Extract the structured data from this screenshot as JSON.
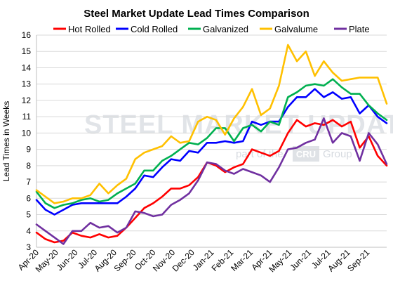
{
  "chart_data": {
    "type": "line",
    "title": "Steel Market Update Lead Times Comparison",
    "ylabel": "Lead Times in Weeks",
    "xlabel": "",
    "ylim": [
      3,
      16
    ],
    "yticks": [
      3,
      4,
      5,
      6,
      7,
      8,
      9,
      10,
      11,
      12,
      13,
      14,
      15,
      16
    ],
    "grid": true,
    "legend_position": "top",
    "watermark": {
      "brand": "STEEL MARKET UPDATE",
      "tagline_prefix": "part of the",
      "tagline_logo": "CRU",
      "tagline_suffix": "Group"
    },
    "x_tick_labels": [
      "Apr-20",
      "May-20",
      "Jun-20",
      "Jul-20",
      "Aug-20",
      "Sep-20",
      "Oct-20",
      "Nov-20",
      "Dec-20",
      "Jan-21",
      "Feb-21",
      "Mar-21",
      "Apr-21",
      "May-21",
      "Jun-21",
      "Jul-21",
      "Aug-21",
      "Sep-21"
    ],
    "series": [
      {
        "name": "Hot Rolled",
        "color": "#ff0000",
        "values": [
          3.9,
          3.5,
          3.3,
          3.4,
          3.9,
          3.7,
          3.6,
          3.8,
          3.6,
          3.7,
          4.2,
          4.8,
          5.4,
          5.7,
          6.1,
          6.6,
          6.6,
          6.8,
          7.3,
          8.2,
          8.0,
          7.6,
          7.9,
          8.1,
          9.0,
          8.8,
          8.6,
          8.9,
          10.0,
          10.8,
          10.4,
          10.6,
          10.5,
          10.8,
          10.4,
          10.7,
          9.1,
          9.8,
          8.6,
          8.0
        ]
      },
      {
        "name": "Cold Rolled",
        "color": "#0000ff",
        "values": [
          5.9,
          5.3,
          5.0,
          5.3,
          5.6,
          5.7,
          5.7,
          5.7,
          5.7,
          5.7,
          6.1,
          6.6,
          7.4,
          7.3,
          7.9,
          8.4,
          8.3,
          8.9,
          8.8,
          9.4,
          9.4,
          9.5,
          9.4,
          9.5,
          10.7,
          10.5,
          10.7,
          10.7,
          11.6,
          12.2,
          12.2,
          12.7,
          12.2,
          12.5,
          12.1,
          12.2,
          11.2,
          11.7,
          11.0,
          10.6
        ]
      },
      {
        "name": "Galvanized",
        "color": "#00b050",
        "values": [
          6.4,
          5.7,
          5.4,
          5.6,
          5.7,
          5.9,
          6.0,
          5.8,
          5.9,
          6.3,
          6.6,
          6.9,
          7.7,
          7.7,
          8.3,
          8.6,
          9.0,
          9.4,
          9.3,
          9.7,
          10.3,
          10.3,
          9.5,
          10.3,
          10.5,
          10.1,
          10.7,
          10.5,
          12.2,
          12.5,
          12.9,
          13.0,
          12.9,
          13.3,
          12.8,
          12.4,
          12.4,
          11.7,
          11.2,
          10.8
        ]
      },
      {
        "name": "Galvalume",
        "color": "#ffc000",
        "values": [
          6.5,
          6.1,
          5.7,
          5.8,
          6.0,
          6.0,
          6.2,
          6.9,
          6.3,
          6.8,
          7.2,
          8.4,
          8.8,
          9.0,
          9.2,
          9.8,
          9.4,
          9.5,
          10.7,
          11.0,
          10.8,
          9.9,
          10.9,
          11.6,
          12.7,
          11.1,
          11.5,
          12.9,
          15.4,
          14.4,
          15.0,
          13.5,
          14.4,
          13.7,
          13.2,
          13.3,
          13.4,
          13.4,
          13.4,
          11.8
        ]
      },
      {
        "name": "Plate",
        "color": "#7030a0",
        "values": [
          4.4,
          4.0,
          3.6,
          3.2,
          4.0,
          4.0,
          4.5,
          4.2,
          4.3,
          3.9,
          4.2,
          5.2,
          5.1,
          4.9,
          5.0,
          5.6,
          5.9,
          6.3,
          7.1,
          8.2,
          8.1,
          7.7,
          7.5,
          7.8,
          7.6,
          7.4,
          7.0,
          7.9,
          9.0,
          9.1,
          9.4,
          9.6,
          10.9,
          9.4,
          10.0,
          9.8,
          8.3,
          10.0,
          9.3,
          8.1
        ]
      }
    ]
  }
}
